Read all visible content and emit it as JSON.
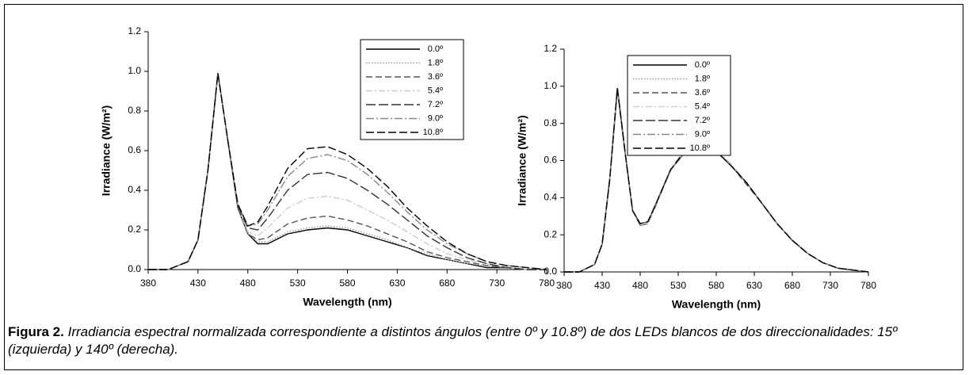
{
  "chart_data": [
    {
      "type": "line",
      "xlabel": "Wavelength (nm)",
      "ylabel": "Irradiance (W/m²)",
      "x": [
        380,
        400,
        420,
        430,
        440,
        450,
        460,
        470,
        480,
        490,
        500,
        520,
        540,
        560,
        580,
        600,
        620,
        640,
        660,
        680,
        700,
        720,
        740,
        760,
        780
      ],
      "xlim": [
        380,
        780
      ],
      "xticks": [
        380,
        430,
        480,
        530,
        580,
        630,
        680,
        730,
        780
      ],
      "ylim": [
        0,
        1.2
      ],
      "yticks": [
        {
          "value": 0,
          "label": "0.0"
        },
        0.2,
        0.4,
        0.6,
        0.8,
        {
          "value": 1,
          "label": "1.0"
        },
        1.2
      ],
      "legend": "upper right",
      "series": [
        {
          "name": "0.0º",
          "color": "#000000",
          "dash": "none",
          "values": [
            0,
            0,
            0.04,
            0.15,
            0.5,
            0.99,
            0.65,
            0.31,
            0.18,
            0.13,
            0.13,
            0.18,
            0.2,
            0.21,
            0.2,
            0.17,
            0.14,
            0.11,
            0.07,
            0.05,
            0.03,
            0.01,
            0.01,
            0,
            0
          ]
        },
        {
          "name": "1.8º",
          "color": "#999999",
          "dash": "1.5 2",
          "values": [
            0,
            0,
            0.04,
            0.15,
            0.5,
            0.99,
            0.65,
            0.31,
            0.18,
            0.14,
            0.14,
            0.19,
            0.21,
            0.22,
            0.21,
            0.18,
            0.15,
            0.11,
            0.08,
            0.05,
            0.03,
            0.02,
            0.01,
            0,
            0
          ]
        },
        {
          "name": "3.6º",
          "color": "#555555",
          "dash": "8 4",
          "values": [
            0,
            0,
            0.04,
            0.15,
            0.5,
            0.99,
            0.65,
            0.31,
            0.18,
            0.15,
            0.16,
            0.23,
            0.26,
            0.27,
            0.25,
            0.22,
            0.18,
            0.14,
            0.09,
            0.06,
            0.04,
            0.02,
            0.01,
            0,
            0
          ]
        },
        {
          "name": "5.4º",
          "color": "#cccccc",
          "dash": "8 3 2 3",
          "values": [
            0,
            0,
            0.04,
            0.15,
            0.5,
            0.99,
            0.65,
            0.32,
            0.19,
            0.17,
            0.21,
            0.31,
            0.36,
            0.37,
            0.35,
            0.3,
            0.25,
            0.19,
            0.13,
            0.08,
            0.05,
            0.03,
            0.01,
            0,
            0
          ]
        },
        {
          "name": "7.2º",
          "color": "#333333",
          "dash": "12 4",
          "values": [
            0,
            0,
            0.04,
            0.15,
            0.5,
            0.99,
            0.65,
            0.32,
            0.21,
            0.2,
            0.26,
            0.4,
            0.48,
            0.49,
            0.46,
            0.4,
            0.33,
            0.25,
            0.17,
            0.11,
            0.06,
            0.03,
            0.01,
            0,
            0
          ]
        },
        {
          "name": "9.0º",
          "color": "#888888",
          "dash": "10 3 2 3",
          "values": [
            0,
            0,
            0.04,
            0.15,
            0.5,
            0.99,
            0.65,
            0.33,
            0.22,
            0.23,
            0.3,
            0.47,
            0.56,
            0.58,
            0.55,
            0.48,
            0.39,
            0.29,
            0.2,
            0.13,
            0.08,
            0.04,
            0.02,
            0.01,
            0
          ]
        },
        {
          "name": "10.8º",
          "color": "#000000",
          "dash": "10 4",
          "values": [
            0,
            0,
            0.04,
            0.15,
            0.5,
            0.99,
            0.65,
            0.33,
            0.22,
            0.24,
            0.32,
            0.51,
            0.61,
            0.62,
            0.58,
            0.51,
            0.42,
            0.31,
            0.22,
            0.14,
            0.08,
            0.04,
            0.02,
            0.01,
            0
          ]
        }
      ]
    },
    {
      "type": "line",
      "xlabel": "Wavelength (nm)",
      "ylabel": "Irradiance (W/m²)",
      "x": [
        380,
        400,
        420,
        430,
        440,
        450,
        460,
        470,
        480,
        490,
        500,
        520,
        540,
        560,
        580,
        600,
        620,
        640,
        660,
        680,
        700,
        720,
        740,
        760,
        780
      ],
      "xlim": [
        380,
        780
      ],
      "xticks": [
        380,
        430,
        480,
        530,
        580,
        630,
        680,
        730,
        780
      ],
      "ylim": [
        0,
        1.2
      ],
      "yticks": [
        {
          "value": 0,
          "label": "0.0"
        },
        0.2,
        0.4,
        0.6,
        0.8,
        {
          "value": 1,
          "label": "1.0"
        },
        1.2
      ],
      "legend": "upper right",
      "series": [
        {
          "name": "0.0º",
          "color": "#000000",
          "dash": "none",
          "values": [
            0,
            0,
            0.04,
            0.15,
            0.5,
            0.99,
            0.65,
            0.33,
            0.26,
            0.27,
            0.36,
            0.55,
            0.65,
            0.68,
            0.65,
            0.57,
            0.48,
            0.37,
            0.26,
            0.17,
            0.1,
            0.05,
            0.02,
            0.01,
            0
          ]
        },
        {
          "name": "1.8º",
          "color": "#999999",
          "dash": "1.5 2",
          "values": [
            0,
            0,
            0.04,
            0.15,
            0.5,
            0.98,
            0.64,
            0.33,
            0.26,
            0.27,
            0.36,
            0.55,
            0.66,
            0.68,
            0.65,
            0.57,
            0.48,
            0.37,
            0.26,
            0.17,
            0.1,
            0.05,
            0.02,
            0.01,
            0
          ]
        },
        {
          "name": "3.6º",
          "color": "#555555",
          "dash": "8 4",
          "values": [
            0,
            0,
            0.04,
            0.15,
            0.5,
            0.99,
            0.65,
            0.33,
            0.25,
            0.26,
            0.36,
            0.55,
            0.65,
            0.67,
            0.65,
            0.57,
            0.47,
            0.37,
            0.26,
            0.17,
            0.1,
            0.05,
            0.02,
            0.01,
            0
          ]
        },
        {
          "name": "5.4º",
          "color": "#cccccc",
          "dash": "8 3 2 3",
          "values": [
            0,
            0,
            0.04,
            0.15,
            0.5,
            0.98,
            0.65,
            0.33,
            0.26,
            0.27,
            0.36,
            0.56,
            0.66,
            0.68,
            0.66,
            0.58,
            0.48,
            0.37,
            0.26,
            0.17,
            0.1,
            0.05,
            0.02,
            0.01,
            0
          ]
        },
        {
          "name": "7.2º",
          "color": "#333333",
          "dash": "12 4",
          "values": [
            0,
            0,
            0.04,
            0.15,
            0.5,
            0.99,
            0.65,
            0.33,
            0.26,
            0.27,
            0.36,
            0.55,
            0.65,
            0.68,
            0.65,
            0.57,
            0.48,
            0.37,
            0.26,
            0.17,
            0.1,
            0.05,
            0.02,
            0.01,
            0
          ]
        },
        {
          "name": "9.0º",
          "color": "#888888",
          "dash": "10 3 2 3",
          "values": [
            0,
            0,
            0.04,
            0.15,
            0.5,
            0.98,
            0.64,
            0.33,
            0.25,
            0.26,
            0.35,
            0.55,
            0.65,
            0.67,
            0.65,
            0.57,
            0.48,
            0.37,
            0.26,
            0.17,
            0.1,
            0.05,
            0.02,
            0.01,
            0
          ]
        },
        {
          "name": "10.8º",
          "color": "#000000",
          "dash": "10 4",
          "values": [
            0,
            0,
            0.04,
            0.15,
            0.5,
            0.99,
            0.65,
            0.33,
            0.26,
            0.27,
            0.36,
            0.55,
            0.66,
            0.68,
            0.65,
            0.57,
            0.48,
            0.37,
            0.26,
            0.17,
            0.1,
            0.05,
            0.02,
            0.01,
            0
          ]
        }
      ]
    }
  ],
  "caption": {
    "label": "Figura 2.",
    "text": "Irradiancia espectral normalizada correspondiente a distintos ángulos (entre 0º y 10.8º) de dos LEDs blancos de dos direccionalidades: 15º (izquierda) y 140º (derecha)."
  }
}
